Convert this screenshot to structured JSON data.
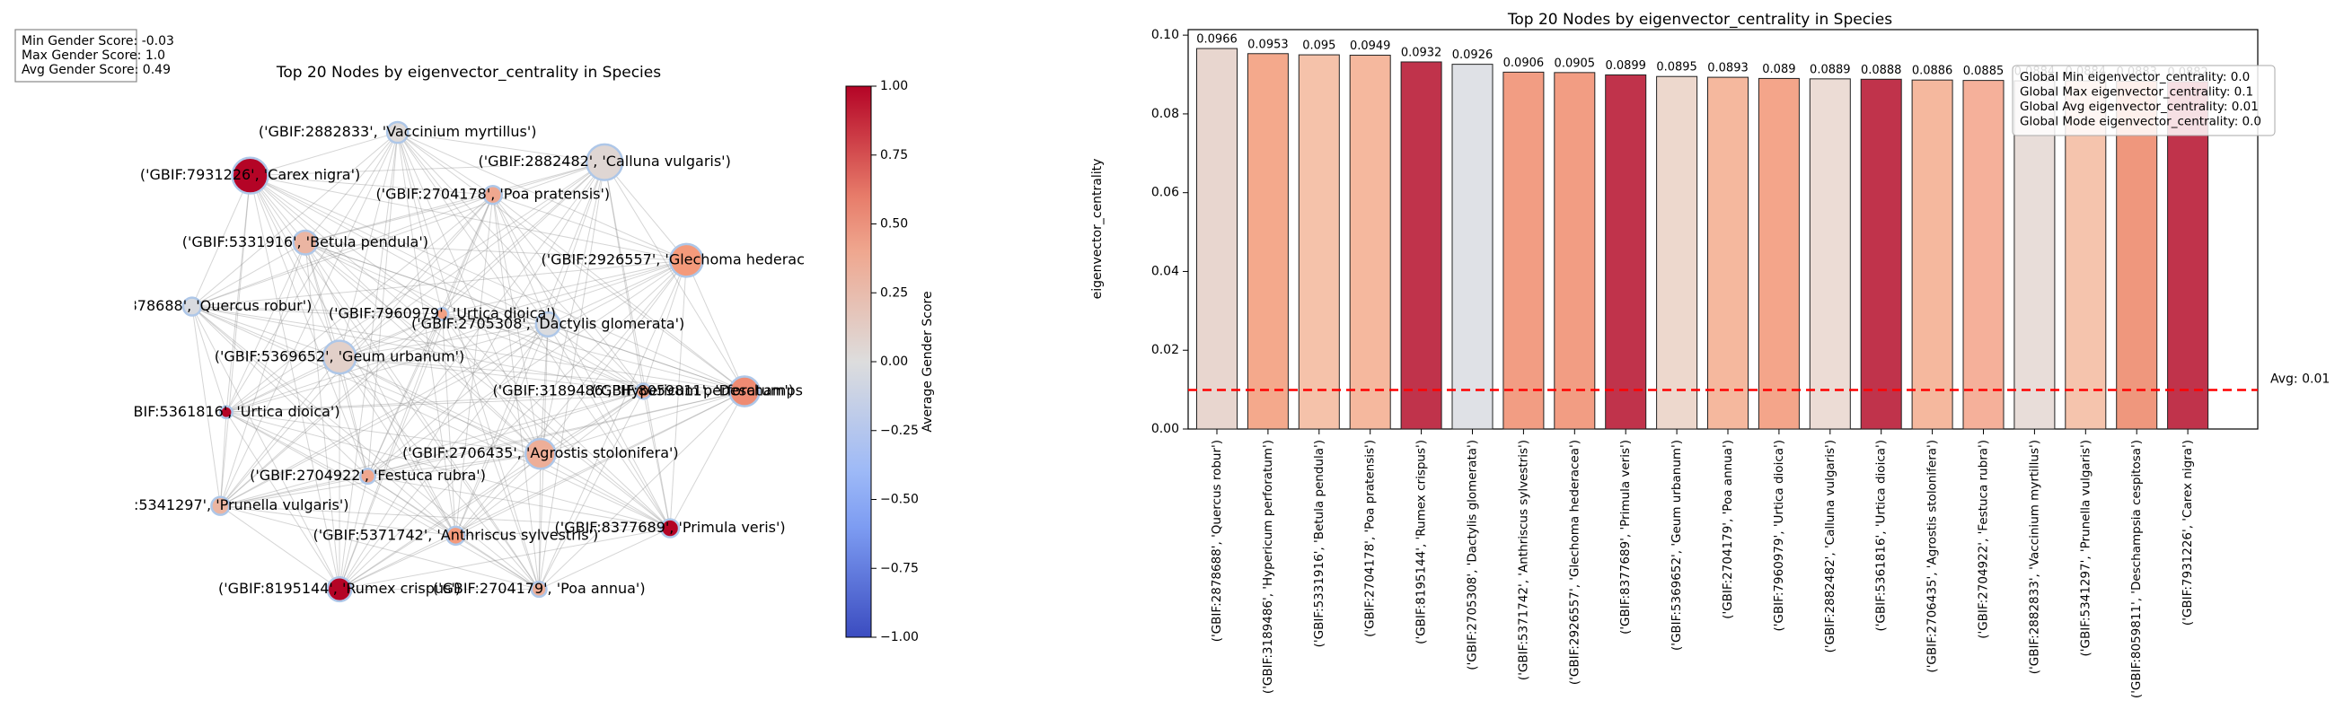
{
  "chart_data": [
    {
      "type": "network",
      "title": "Top 20 Nodes by eigenvector_centrality in Species",
      "annotations": [
        "Min Gender Score: -0.03",
        "Max Gender Score: 1.0",
        "Avg Gender Score: 0.49"
      ],
      "nodes": [
        {
          "label": "('GBIF:2882833', 'Vaccinium myrtillus')",
          "value": 0.02
        },
        {
          "label": "('GBIF:2882482', 'Calluna vulgaris')",
          "value": 0.05
        },
        {
          "label": "('GBIF:7931226', 'Carex nigra')",
          "value": 1.0
        },
        {
          "label": "('GBIF:2704178', 'Poa pratensis')",
          "value": 0.4
        },
        {
          "label": "('GBIF:5331916', 'Betula pendula')",
          "value": 0.3
        },
        {
          "label": "('GBIF:2926557', 'Glechoma hederacea')",
          "value": 0.5
        },
        {
          "label": "('GBIF:2878688', 'Quercus robur')",
          "value": -0.03
        },
        {
          "label": "('GBIF:7960979', 'Urtica dioica')",
          "value": 0.45
        },
        {
          "label": "('GBIF:2705308', 'Dactylis glomerata')",
          "value": -0.02
        },
        {
          "label": "('GBIF:5369652', 'Geum urbanum')",
          "value": 0.1
        },
        {
          "label": "('GBIF:3189486', 'Hypericum perforatum')",
          "value": 0.45
        },
        {
          "label": "('GBIF:8059811', 'Deschampsia cespitosa')",
          "value": 0.55
        },
        {
          "label": "('GBIF:5361816', 'Urtica dioica')",
          "value": 1.0
        },
        {
          "label": "('GBIF:2706435', 'Agrostis stolonifera')",
          "value": 0.35
        },
        {
          "label": "('GBIF:2704922', 'Festuca rubra')",
          "value": 0.4
        },
        {
          "label": "('GBIF:5341297', 'Prunella vulgaris')",
          "value": 0.3
        },
        {
          "label": "('GBIF:5371742', 'Anthriscus sylvestris')",
          "value": 0.5
        },
        {
          "label": "('GBIF:8377689', 'Primula veris')",
          "value": 1.0
        },
        {
          "label": "('GBIF:8195144', 'Rumex crispus')",
          "value": 1.0
        },
        {
          "label": "('GBIF:2704179', 'Poa annua')",
          "value": 0.35
        }
      ],
      "colorbar": {
        "label": "Average Gender Score",
        "ylim": [
          -1,
          1
        ],
        "yticks": [
          {
            "value": -1,
            "label": "−1.00"
          },
          {
            "value": -0.75,
            "label": "−0.75"
          },
          {
            "value": -0.5,
            "label": "−0.50"
          },
          {
            "value": -0.25,
            "label": "−0.25"
          },
          {
            "value": 0,
            "label": "0.00"
          },
          0.25,
          {
            "value": 0.5,
            "label": "0.50"
          },
          0.75,
          {
            "value": 1,
            "label": "1.00"
          }
        ]
      }
    },
    {
      "type": "bar",
      "title": "Top 20 Nodes by eigenvector_centrality in Species",
      "ylabel": "eigenvector_centrality",
      "categories": [
        "('GBIF:2878688', 'Quercus robur')",
        "('GBIF:3189486', 'Hypericum perforatum')",
        "('GBIF:5331916', 'Betula pendula')",
        "('GBIF:2704178', 'Poa pratensis')",
        "('GBIF:8195144', 'Rumex crispus')",
        "('GBIF:2705308', 'Dactylis glomerata')",
        "('GBIF:5371742', 'Anthriscus sylvestris')",
        "('GBIF:2926557', 'Glechoma hederacea')",
        "('GBIF:8377689', 'Primula veris')",
        "('GBIF:5369652', 'Geum urbanum')",
        "('GBIF:2704179', 'Poa annua')",
        "('GBIF:7960979', 'Urtica dioica')",
        "('GBIF:2882482', 'Calluna vulgaris')",
        "('GBIF:5361816', 'Urtica dioica')",
        "('GBIF:2706435', 'Agrostis stolonifera')",
        "('GBIF:2704922', 'Festuca rubra')",
        "('GBIF:2882833', 'Vaccinium myrtillus')",
        "('GBIF:5341297', 'Prunella vulgaris')",
        "('GBIF:8059811', 'Deschampsia cespitosa')",
        "('GBIF:7931226', 'Carex nigra')"
      ],
      "values": [
        0.0966,
        0.0953,
        0.095,
        0.0949,
        0.0932,
        0.0926,
        0.0906,
        0.0905,
        0.0899,
        0.0895,
        0.0893,
        0.089,
        0.0889,
        0.0888,
        0.0886,
        0.0885,
        0.0884,
        0.0884,
        0.0883,
        0.0882
      ],
      "colors": [
        "#e8d6cf",
        "#f4a98c",
        "#f5c2aa",
        "#f5b89e",
        "#c0334b",
        "#dfe1e6",
        "#f29d83",
        "#f29d83",
        "#c0334b",
        "#edd8cd",
        "#f5b89e",
        "#f4a58a",
        "#ecdcd5",
        "#c0334b",
        "#f5b89e",
        "#f5b09a",
        "#e8ddd9",
        "#f5c4ad",
        "#ef977d",
        "#c0334b"
      ],
      "ylim": [
        0,
        0.1014
      ],
      "yticks": [
        {
          "value": 0,
          "label": "0.00"
        },
        0.02,
        0.04,
        0.06,
        0.08,
        {
          "value": 0.1,
          "label": "0.10"
        }
      ],
      "average": {
        "value": 0.0099,
        "label": "Avg: 0.01",
        "color": "#ff0000"
      },
      "legend_texts": [
        "Global Min eigenvector_centrality: 0.0",
        "Global Max eigenvector_centrality: 0.1",
        "Global Avg eigenvector_centrality: 0.01",
        "Global Mode eigenvector_centrality: 0.0"
      ]
    }
  ]
}
